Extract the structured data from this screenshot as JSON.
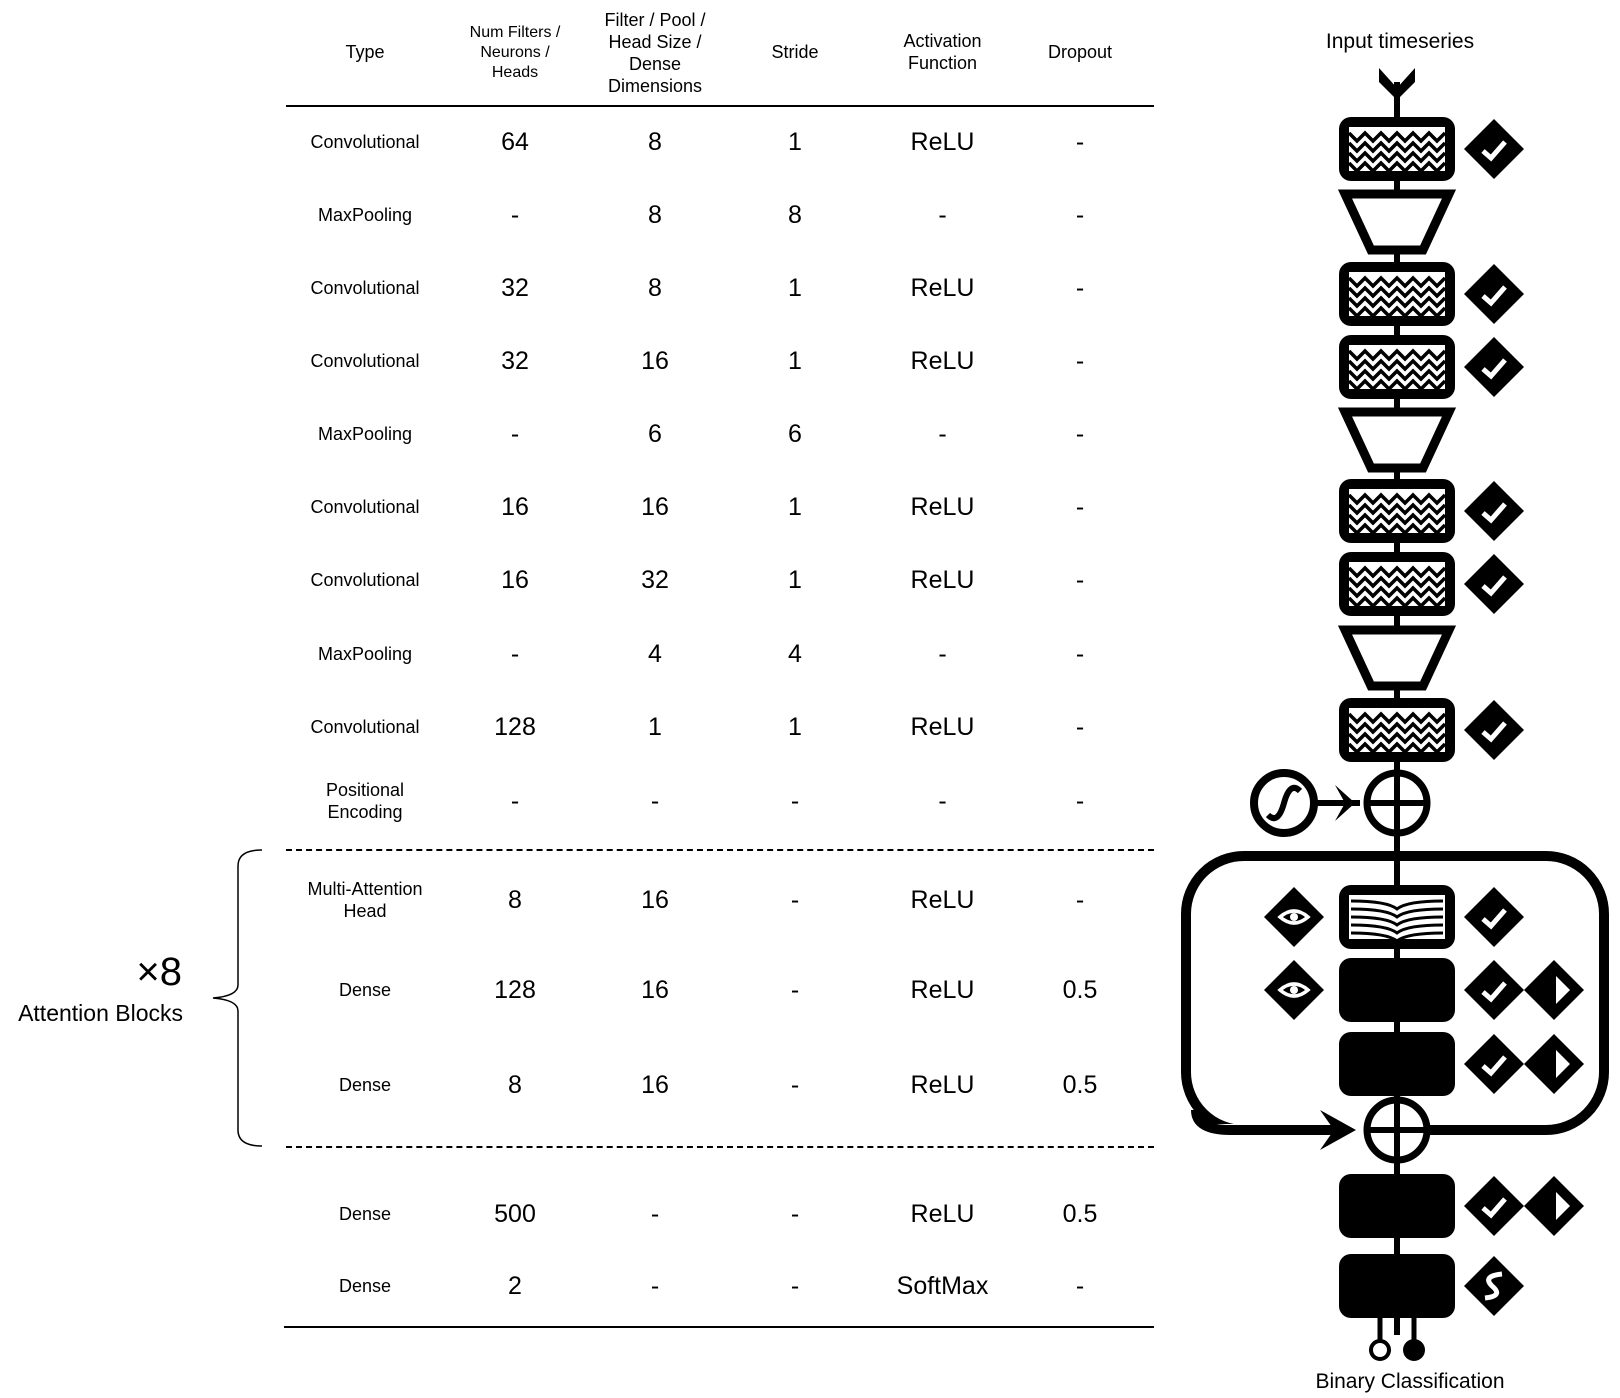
{
  "table": {
    "headers": {
      "type": "Type",
      "num_filters": "Num Filters / Neurons / Heads",
      "filter_size": "Filter / Pool / Head Size / Dense Dimensions",
      "stride": "Stride",
      "activation": "Activation Function",
      "dropout": "Dropout"
    },
    "rows": [
      {
        "type": "Convolutional",
        "num": "64",
        "size": "8",
        "stride": "1",
        "act": "ReLU",
        "drop": "-"
      },
      {
        "type": "MaxPooling",
        "num": "-",
        "size": "8",
        "stride": "8",
        "act": "-",
        "drop": "-"
      },
      {
        "type": "Convolutional",
        "num": "32",
        "size": "8",
        "stride": "1",
        "act": "ReLU",
        "drop": "-"
      },
      {
        "type": "Convolutional",
        "num": "32",
        "size": "16",
        "stride": "1",
        "act": "ReLU",
        "drop": "-"
      },
      {
        "type": "MaxPooling",
        "num": "-",
        "size": "6",
        "stride": "6",
        "act": "-",
        "drop": "-"
      },
      {
        "type": "Convolutional",
        "num": "16",
        "size": "16",
        "stride": "1",
        "act": "ReLU",
        "drop": "-"
      },
      {
        "type": "Convolutional",
        "num": "16",
        "size": "32",
        "stride": "1",
        "act": "ReLU",
        "drop": "-"
      },
      {
        "type": "MaxPooling",
        "num": "-",
        "size": "4",
        "stride": "4",
        "act": "-",
        "drop": "-"
      },
      {
        "type": "Convolutional",
        "num": "128",
        "size": "1",
        "stride": "1",
        "act": "ReLU",
        "drop": "-"
      },
      {
        "type": "Positional Encoding",
        "num": "-",
        "size": "-",
        "stride": "-",
        "act": "-",
        "drop": "-"
      },
      {
        "type": "Multi-Attention Head",
        "num": "8",
        "size": "16",
        "stride": "-",
        "act": "ReLU",
        "drop": "-"
      },
      {
        "type": "Dense",
        "num": "128",
        "size": "16",
        "stride": "-",
        "act": "ReLU",
        "drop": "0.5"
      },
      {
        "type": "Dense",
        "num": "8",
        "size": "16",
        "stride": "-",
        "act": "ReLU",
        "drop": "0.5"
      },
      {
        "type": "Dense",
        "num": "500",
        "size": "-",
        "stride": "-",
        "act": "ReLU",
        "drop": "0.5"
      },
      {
        "type": "Dense",
        "num": "2",
        "size": "-",
        "stride": "-",
        "act": "SoftMax",
        "drop": "-"
      }
    ]
  },
  "attention_group": {
    "count": "×8",
    "label": "Attention Blocks"
  },
  "diagram": {
    "input_label": "Input timeseries",
    "output_label": "Binary Classification",
    "line_color": "#000000",
    "nodes": [
      {
        "kind": "conv",
        "icons": [
          "relu-icon"
        ]
      },
      {
        "kind": "pool",
        "icons": []
      },
      {
        "kind": "conv",
        "icons": [
          "relu-icon"
        ]
      },
      {
        "kind": "conv",
        "icons": [
          "relu-icon"
        ]
      },
      {
        "kind": "pool",
        "icons": []
      },
      {
        "kind": "conv",
        "icons": [
          "relu-icon"
        ]
      },
      {
        "kind": "conv",
        "icons": [
          "relu-icon"
        ]
      },
      {
        "kind": "pool",
        "icons": []
      },
      {
        "kind": "conv",
        "icons": [
          "relu-icon"
        ]
      },
      {
        "kind": "posenc",
        "icons": [
          "positional-encoding-icon"
        ]
      },
      {
        "kind": "attention",
        "icons": [
          "eye-icon",
          "relu-icon"
        ]
      },
      {
        "kind": "dense",
        "icons": [
          "eye-icon",
          "relu-icon",
          "dropout-icon"
        ]
      },
      {
        "kind": "dense",
        "icons": [
          "relu-icon",
          "dropout-icon"
        ]
      },
      {
        "kind": "add",
        "icons": []
      },
      {
        "kind": "dense",
        "icons": [
          "relu-icon",
          "dropout-icon"
        ]
      },
      {
        "kind": "dense",
        "icons": [
          "softmax-icon"
        ]
      }
    ]
  }
}
